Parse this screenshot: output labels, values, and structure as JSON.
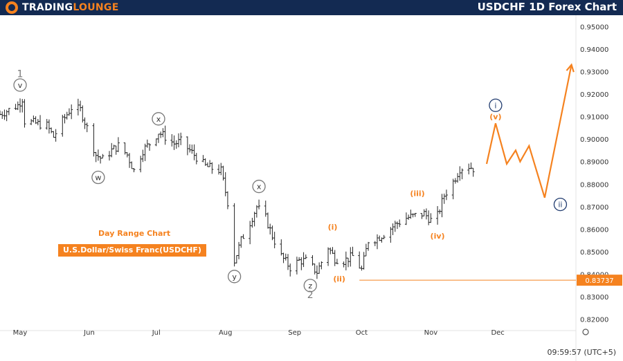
{
  "header": {
    "logo_text_left": "TradingLounge",
    "title": "USDCHF 1D Forex Chart"
  },
  "labels": {
    "day_range": "Day Range Chart",
    "pair_name": "U.S.Dollar/Swiss Franc(USDCHF)",
    "time": "09:59:57 (UTC+5)"
  },
  "colors": {
    "orange": "#f5821f",
    "navy": "#1f3a6e",
    "gray": "#777777",
    "candle": "#222222"
  },
  "chart_data": {
    "type": "candlestick",
    "yaxis": {
      "min": 0.815,
      "max": 0.955,
      "ticks": [
        "0.95000",
        "0.94000",
        "0.93000",
        "0.92000",
        "0.91000",
        "0.90000",
        "0.89000",
        "0.88000",
        "0.87000",
        "0.86000",
        "0.85000",
        "0.84000",
        "0.83000",
        "0.82000"
      ]
    },
    "xaxis": {
      "start_date": "2024-04-22",
      "end_date": "2025-01-05",
      "ticks": [
        {
          "label": "May",
          "date": "2024-05-01"
        },
        {
          "label": "Jun",
          "date": "2024-06-01"
        },
        {
          "label": "Jul",
          "date": "2024-07-01"
        },
        {
          "label": "Aug",
          "date": "2024-08-01"
        },
        {
          "label": "Sep",
          "date": "2024-09-01"
        },
        {
          "label": "Oct",
          "date": "2024-10-01"
        },
        {
          "label": "Nov",
          "date": "2024-11-01"
        },
        {
          "label": "Dec",
          "date": "2024-12-01"
        }
      ]
    },
    "price_path": [
      [
        "2024-04-22",
        0.911
      ],
      [
        "2024-04-26",
        0.913
      ],
      [
        "2024-04-30",
        0.915
      ],
      [
        "2024-05-02",
        0.918
      ],
      [
        "2024-05-03",
        0.908
      ],
      [
        "2024-05-08",
        0.907
      ],
      [
        "2024-05-13",
        0.906
      ],
      [
        "2024-05-16",
        0.901
      ],
      [
        "2024-05-20",
        0.908
      ],
      [
        "2024-05-24",
        0.914
      ],
      [
        "2024-05-28",
        0.913
      ],
      [
        "2024-05-31",
        0.905
      ],
      [
        "2024-06-04",
        0.893
      ],
      [
        "2024-06-07",
        0.891
      ],
      [
        "2024-06-11",
        0.895
      ],
      [
        "2024-06-14",
        0.897
      ],
      [
        "2024-06-18",
        0.893
      ],
      [
        "2024-06-21",
        0.886
      ],
      [
        "2024-06-25",
        0.895
      ],
      [
        "2024-06-28",
        0.898
      ],
      [
        "2024-07-02",
        0.903
      ],
      [
        "2024-07-05",
        0.901
      ],
      [
        "2024-07-09",
        0.898
      ],
      [
        "2024-07-12",
        0.899
      ],
      [
        "2024-07-16",
        0.895
      ],
      [
        "2024-07-19",
        0.892
      ],
      [
        "2024-07-23",
        0.888
      ],
      [
        "2024-07-26",
        0.887
      ],
      [
        "2024-07-30",
        0.886
      ],
      [
        "2024-08-02",
        0.872
      ],
      [
        "2024-08-05",
        0.846
      ],
      [
        "2024-08-08",
        0.855
      ],
      [
        "2024-08-12",
        0.863
      ],
      [
        "2024-08-15",
        0.87
      ],
      [
        "2024-08-19",
        0.865
      ],
      [
        "2024-08-22",
        0.857
      ],
      [
        "2024-08-26",
        0.848
      ],
      [
        "2024-08-30",
        0.843
      ],
      [
        "2024-09-03",
        0.846
      ],
      [
        "2024-09-06",
        0.846
      ],
      [
        "2024-09-11",
        0.841
      ],
      [
        "2024-09-16",
        0.852
      ],
      [
        "2024-09-19",
        0.847
      ],
      [
        "2024-09-23",
        0.846
      ],
      [
        "2024-09-27",
        0.848
      ],
      [
        "2024-10-01",
        0.842
      ],
      [
        "2024-10-04",
        0.855
      ],
      [
        "2024-10-08",
        0.856
      ],
      [
        "2024-10-11",
        0.858
      ],
      [
        "2024-10-16",
        0.862
      ],
      [
        "2024-10-21",
        0.865
      ],
      [
        "2024-10-25",
        0.866
      ],
      [
        "2024-10-29",
        0.867
      ],
      [
        "2024-11-01",
        0.864
      ],
      [
        "2024-11-04",
        0.866
      ],
      [
        "2024-11-07",
        0.875
      ],
      [
        "2024-11-11",
        0.881
      ],
      [
        "2024-11-14",
        0.887
      ],
      [
        "2024-11-18",
        0.888
      ],
      [
        "2024-11-20",
        0.887
      ]
    ],
    "projection": [
      [
        "2024-11-26",
        0.889
      ],
      [
        "2024-11-30",
        0.907
      ],
      [
        "2024-12-05",
        0.889
      ],
      [
        "2024-12-09",
        0.895
      ],
      [
        "2024-12-11",
        0.89
      ],
      [
        "2024-12-15",
        0.897
      ],
      [
        "2024-12-22",
        0.874
      ],
      [
        "2025-01-03",
        0.933
      ]
    ],
    "horizontal_line": {
      "price": 0.83737,
      "label": "0.83737",
      "from_date": "2024-09-30"
    },
    "wave_labels": [
      {
        "text": "1",
        "date": "2024-05-01",
        "price": 0.929,
        "style": "plain-gray"
      },
      {
        "text": "v",
        "date": "2024-05-01",
        "price": 0.924,
        "style": "circle-gray"
      },
      {
        "text": "w",
        "date": "2024-06-05",
        "price": 0.883,
        "style": "circle-gray"
      },
      {
        "text": "x",
        "date": "2024-07-02",
        "price": 0.909,
        "style": "circle-gray"
      },
      {
        "text": "x",
        "date": "2024-08-16",
        "price": 0.879,
        "style": "circle-gray"
      },
      {
        "text": "y",
        "date": "2024-08-05",
        "price": 0.839,
        "style": "circle-gray"
      },
      {
        "text": "z",
        "date": "2024-09-08",
        "price": 0.835,
        "style": "circle-gray"
      },
      {
        "text": "2",
        "date": "2024-09-08",
        "price": 0.831,
        "style": "plain-gray"
      },
      {
        "text": "(i)",
        "date": "2024-09-18",
        "price": 0.861,
        "style": "orange"
      },
      {
        "text": "(ii)",
        "date": "2024-09-21",
        "price": 0.838,
        "style": "orange"
      },
      {
        "text": "(iii)",
        "date": "2024-10-26",
        "price": 0.876,
        "style": "orange"
      },
      {
        "text": "(iv)",
        "date": "2024-11-04",
        "price": 0.857,
        "style": "orange"
      },
      {
        "text": "(v)",
        "date": "2024-11-30",
        "price": 0.91,
        "style": "orange"
      },
      {
        "text": "i",
        "date": "2024-11-30",
        "price": 0.915,
        "style": "circle-navy"
      },
      {
        "text": "ii",
        "date": "2024-12-29",
        "price": 0.871,
        "style": "circle-navy"
      }
    ]
  }
}
